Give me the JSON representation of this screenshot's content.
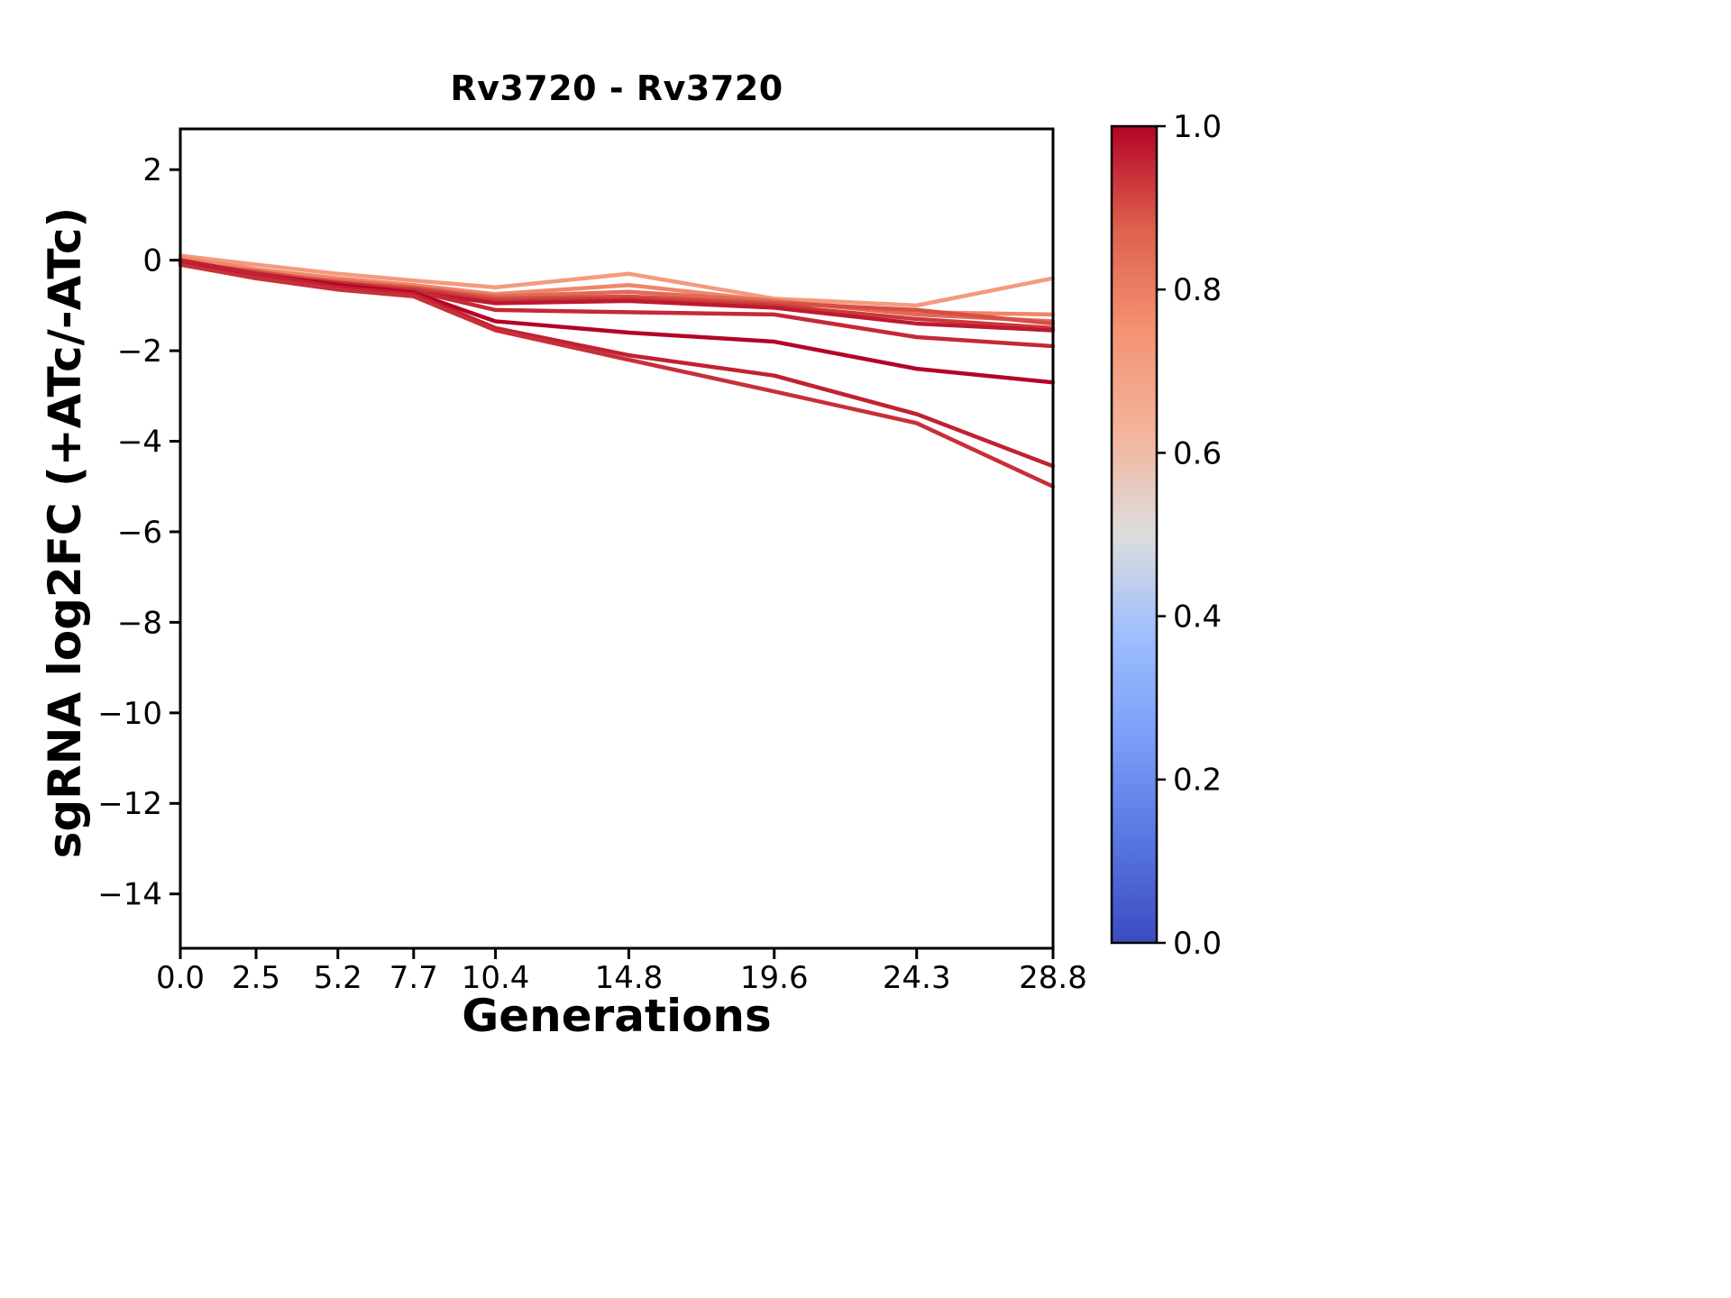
{
  "figure": {
    "title": "Rv3720 - Rv3720",
    "xlabel": "Generations",
    "ylabel": "sgRNA log2FC (+ATc/-ATc)"
  },
  "chart_data": {
    "type": "line",
    "title": "Rv3720 - Rv3720",
    "xlabel": "Generations",
    "ylabel": "sgRNA log2FC (+ATc/-ATc)",
    "x": [
      0.0,
      2.5,
      5.2,
      7.7,
      10.4,
      14.8,
      19.6,
      24.3,
      28.8
    ],
    "xtick_labels": [
      "0.0",
      "2.5",
      "5.2",
      "7.7",
      "10.4",
      "14.8",
      "19.6",
      "24.3",
      "28.8"
    ],
    "xlim": [
      0.0,
      28.8
    ],
    "ylim": [
      -15.2,
      2.9
    ],
    "ytick_values": [
      2,
      0,
      -2,
      -4,
      -6,
      -8,
      -10,
      -12,
      -14
    ],
    "grid": false,
    "legend": null,
    "series": [
      {
        "color_value": 0.72,
        "values": [
          0.1,
          -0.1,
          -0.3,
          -0.45,
          -0.6,
          -0.3,
          -0.85,
          -1.0,
          -0.4
        ]
      },
      {
        "color_value": 0.78,
        "values": [
          0.05,
          -0.2,
          -0.4,
          -0.55,
          -0.75,
          -0.55,
          -0.9,
          -1.15,
          -1.2
        ]
      },
      {
        "color_value": 0.85,
        "values": [
          0.0,
          -0.3,
          -0.45,
          -0.6,
          -0.8,
          -0.7,
          -0.9,
          -1.2,
          -1.35
        ]
      },
      {
        "color_value": 0.9,
        "values": [
          -0.05,
          -0.25,
          -0.5,
          -0.62,
          -0.85,
          -0.8,
          -0.95,
          -1.1,
          -1.4
        ]
      },
      {
        "color_value": 0.93,
        "values": [
          0.0,
          -0.35,
          -0.6,
          -0.65,
          -0.9,
          -0.85,
          -1.0,
          -1.3,
          -1.5
        ]
      },
      {
        "color_value": 0.97,
        "values": [
          -0.05,
          -0.3,
          -0.55,
          -0.7,
          -0.95,
          -0.9,
          -1.05,
          -1.4,
          -1.55
        ]
      },
      {
        "color_value": 0.95,
        "values": [
          -0.1,
          -0.35,
          -0.5,
          -0.68,
          -1.1,
          -1.15,
          -1.2,
          -1.7,
          -1.9
        ]
      },
      {
        "color_value": 1.0,
        "values": [
          -0.05,
          -0.3,
          -0.55,
          -0.72,
          -1.35,
          -1.6,
          -1.8,
          -2.4,
          -2.7
        ]
      },
      {
        "color_value": 0.96,
        "values": [
          0.0,
          -0.3,
          -0.6,
          -0.75,
          -1.5,
          -2.1,
          -2.55,
          -3.4,
          -4.55
        ]
      },
      {
        "color_value": 0.94,
        "values": [
          -0.1,
          -0.4,
          -0.65,
          -0.8,
          -1.55,
          -2.2,
          -2.9,
          -3.6,
          -5.0
        ]
      }
    ],
    "colorbar": {
      "min": 0.0,
      "max": 1.0,
      "ticks": [
        0.0,
        0.2,
        0.4,
        0.6,
        0.8,
        1.0
      ],
      "tick_labels": [
        "0.0",
        "0.2",
        "0.4",
        "0.6",
        "0.8",
        "1.0"
      ],
      "colormap": "coolwarm",
      "position": "right"
    }
  }
}
